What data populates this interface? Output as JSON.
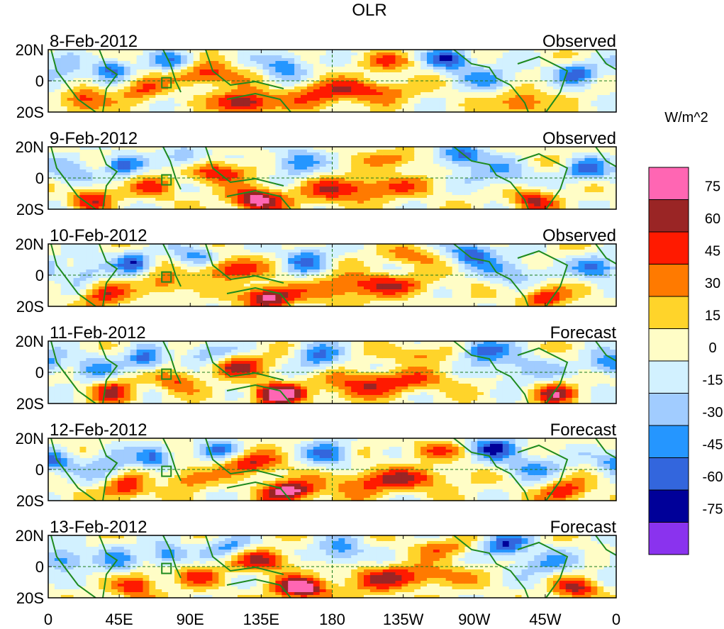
{
  "chart_data": {
    "type": "heatmap",
    "title": "OLR",
    "units": "W/m^2",
    "x_ticks": [
      "0",
      "45E",
      "90E",
      "135E",
      "180",
      "135W",
      "90W",
      "45W",
      "0"
    ],
    "x_tick_lons": [
      0,
      45,
      90,
      135,
      180,
      225,
      270,
      315,
      360
    ],
    "y_ticks": [
      "20N",
      "0",
      "20S"
    ],
    "y_tick_lats": [
      20,
      0,
      -20
    ],
    "xlim": [
      0,
      360
    ],
    "ylim": [
      -20,
      20
    ],
    "panels": [
      {
        "date": "8-Feb-2012",
        "status": "Observed",
        "phase": 0
      },
      {
        "date": "9-Feb-2012",
        "status": "Observed",
        "phase": 1
      },
      {
        "date": "10-Feb-2012",
        "status": "Observed",
        "phase": 2
      },
      {
        "date": "11-Feb-2012",
        "status": "Forecast",
        "phase": 3
      },
      {
        "date": "12-Feb-2012",
        "status": "Forecast",
        "phase": 4
      },
      {
        "date": "13-Feb-2012",
        "status": "Forecast",
        "phase": 5
      }
    ],
    "colorbar": {
      "colors": [
        "#ff66b3",
        "#9a2525",
        "#ff1a00",
        "#ff7a00",
        "#ffd42a",
        "#fffdc6",
        "#d2f1ff",
        "#a1ccff",
        "#2596ff",
        "#3366dd",
        "#000099",
        "#8a33ee"
      ],
      "labels": [
        "75",
        "60",
        "45",
        "30",
        "15",
        "0",
        "-15",
        "-30",
        "-45",
        "-60",
        "-75"
      ],
      "levels": [
        75,
        60,
        45,
        30,
        15,
        0,
        -15,
        -30,
        -45,
        -60,
        -75
      ]
    }
  }
}
